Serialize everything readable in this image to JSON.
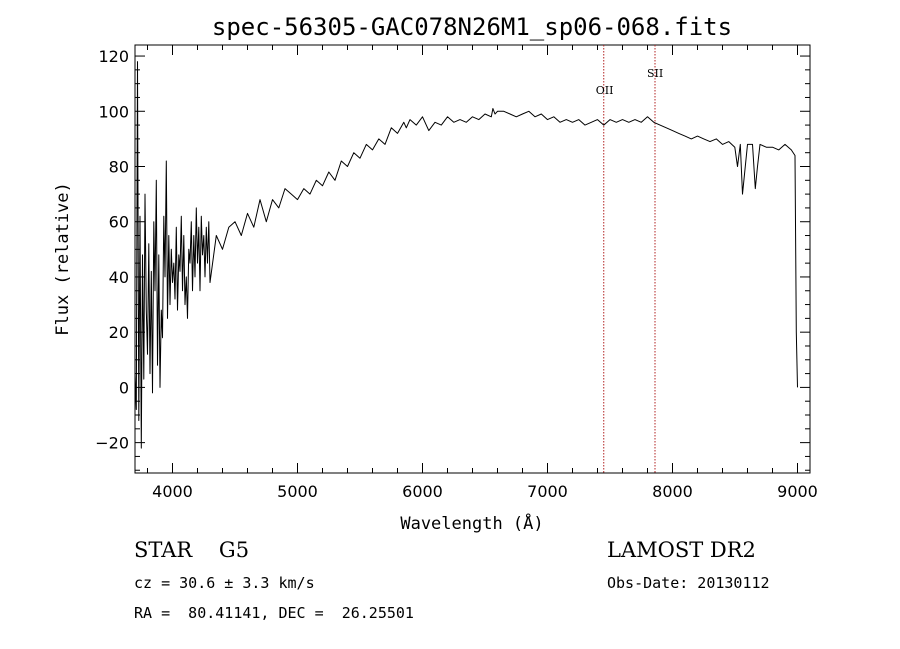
{
  "chart_data": {
    "type": "line",
    "title": "spec-56305-GAC078N26M1_sp06-068.fits",
    "xlabel": "Wavelength (Å)",
    "ylabel": "Flux (relative)",
    "xlim": [
      3700,
      9100
    ],
    "ylim": [
      -31,
      124
    ],
    "x_ticks": [
      4000,
      5000,
      6000,
      7000,
      8000,
      9000
    ],
    "x_tick_labels": [
      "4000",
      "5000",
      "6000",
      "7000",
      "8000",
      "9000"
    ],
    "y_ticks": [
      -20,
      0,
      20,
      40,
      60,
      80,
      100,
      120
    ],
    "y_tick_labels": [
      "−20",
      "0",
      "20",
      "40",
      "60",
      "80",
      "100",
      "120"
    ],
    "grid": false,
    "series": [
      {
        "color": "#000000",
        "x": [
          3700,
          3710,
          3720,
          3730,
          3740,
          3750,
          3760,
          3770,
          3780,
          3790,
          3800,
          3810,
          3820,
          3830,
          3840,
          3850,
          3860,
          3870,
          3880,
          3890,
          3900,
          3910,
          3920,
          3930,
          3940,
          3950,
          3960,
          3970,
          3980,
          3990,
          4000,
          4010,
          4020,
          4030,
          4040,
          4050,
          4060,
          4070,
          4080,
          4090,
          4100,
          4110,
          4120,
          4130,
          4140,
          4150,
          4160,
          4170,
          4180,
          4190,
          4200,
          4210,
          4220,
          4230,
          4240,
          4250,
          4260,
          4270,
          4280,
          4290,
          4300,
          4350,
          4400,
          4450,
          4500,
          4550,
          4600,
          4650,
          4700,
          4750,
          4800,
          4850,
          4900,
          4950,
          5000,
          5050,
          5100,
          5150,
          5200,
          5250,
          5300,
          5350,
          5400,
          5450,
          5500,
          5550,
          5600,
          5650,
          5700,
          5750,
          5800,
          5850,
          5870,
          5900,
          5950,
          6000,
          6050,
          6100,
          6150,
          6200,
          6250,
          6300,
          6350,
          6400,
          6450,
          6500,
          6550,
          6563,
          6580,
          6600,
          6650,
          6700,
          6750,
          6800,
          6850,
          6900,
          6950,
          7000,
          7050,
          7100,
          7150,
          7200,
          7250,
          7300,
          7350,
          7400,
          7450,
          7500,
          7550,
          7600,
          7650,
          7700,
          7750,
          7800,
          7850,
          7900,
          7950,
          8000,
          8050,
          8100,
          8150,
          8200,
          8250,
          8300,
          8350,
          8400,
          8450,
          8498,
          8520,
          8542,
          8560,
          8600,
          8640,
          8662,
          8680,
          8700,
          8750,
          8800,
          8850,
          8900,
          8950,
          8980,
          8990,
          9000
        ],
        "values": [
          5,
          -8,
          118,
          -12,
          62,
          -22,
          48,
          3,
          70,
          28,
          12,
          52,
          5,
          42,
          -2,
          60,
          35,
          75,
          8,
          48,
          0,
          28,
          18,
          62,
          40,
          82,
          25,
          55,
          30,
          50,
          38,
          45,
          32,
          58,
          28,
          48,
          42,
          62,
          35,
          55,
          30,
          40,
          25,
          50,
          45,
          60,
          35,
          55,
          40,
          65,
          45,
          58,
          35,
          62,
          48,
          55,
          40,
          58,
          45,
          60,
          38,
          55,
          50,
          58,
          60,
          55,
          63,
          58,
          68,
          60,
          68,
          65,
          72,
          70,
          68,
          72,
          70,
          75,
          73,
          78,
          75,
          82,
          80,
          85,
          83,
          88,
          86,
          90,
          88,
          94,
          92,
          96,
          94,
          97,
          95,
          98,
          93,
          96,
          95,
          98,
          96,
          97,
          96,
          98,
          97,
          99,
          98,
          101,
          99,
          100,
          100,
          99,
          98,
          99,
          100,
          98,
          99,
          97,
          98,
          96,
          97,
          96,
          97,
          95,
          96,
          97,
          95,
          97,
          96,
          97,
          96,
          97,
          96,
          98,
          96,
          95,
          94,
          93,
          92,
          91,
          90,
          91,
          90,
          89,
          90,
          88,
          89,
          87,
          80,
          88,
          70,
          88,
          88,
          72,
          80,
          88,
          87,
          87,
          86,
          88,
          86,
          84,
          20,
          0
        ]
      }
    ],
    "annotations": [
      {
        "x": 7450,
        "label": "OII",
        "color": "#b22222"
      },
      {
        "x": 7860,
        "label": "SII",
        "color": "#b22222"
      }
    ]
  },
  "info": {
    "object_class": "STAR    G5",
    "velocity": "cz = 30.6 ± 3.3 km/s",
    "coords": "RA =  80.41141, DEC =  26.25501",
    "survey": "LAMOST DR2",
    "obs_date": "Obs-Date: 20130112"
  }
}
